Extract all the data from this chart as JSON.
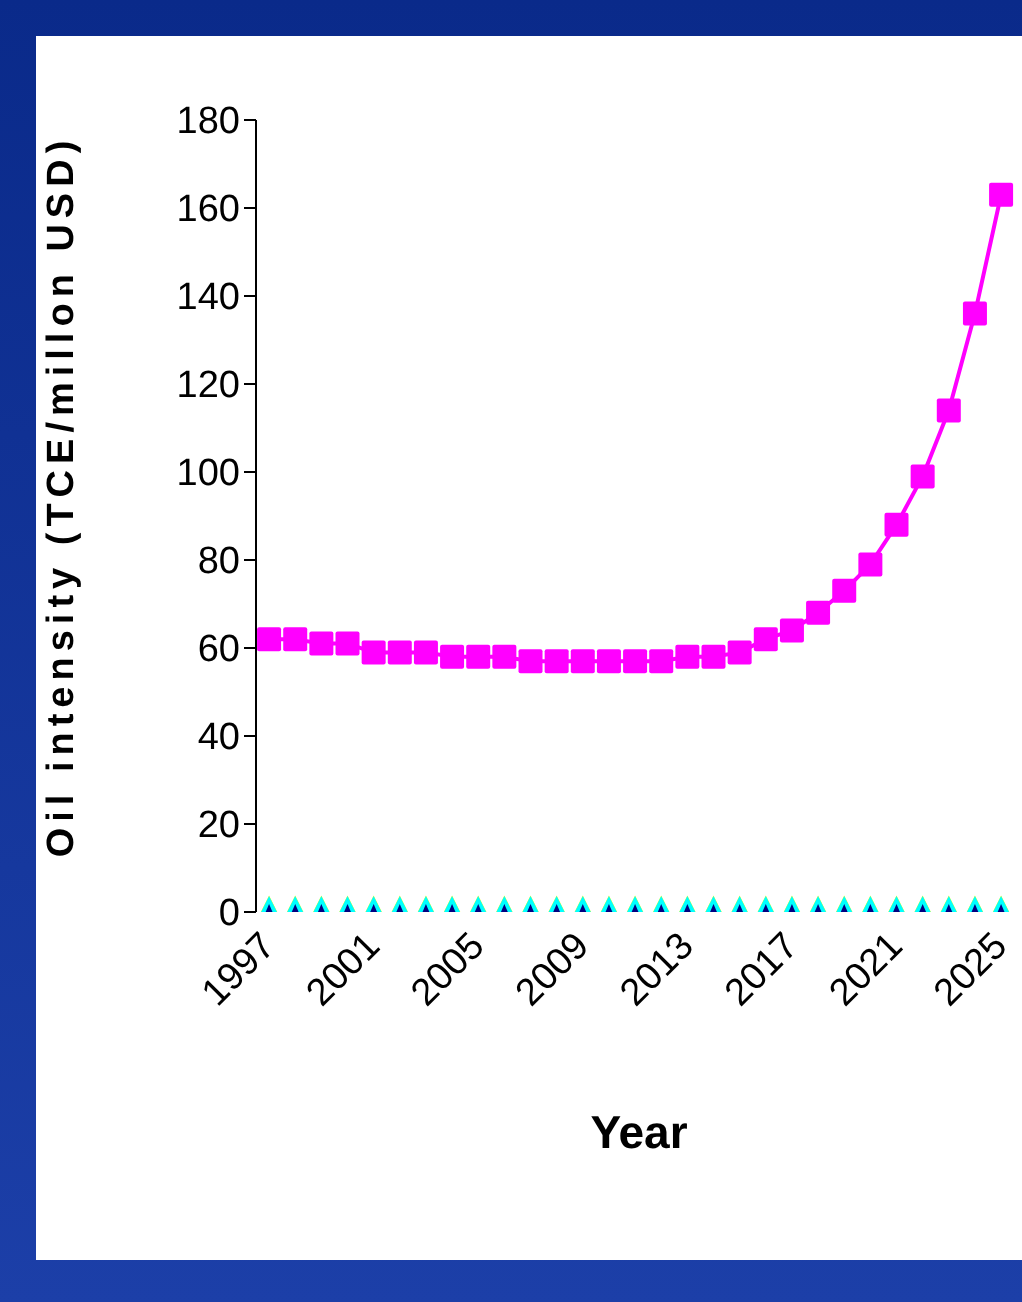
{
  "chart_data": {
    "type": "line",
    "xlabel": "Year",
    "ylabel": "Oil intensity (TCE/millon USD)",
    "categories": [
      "1997",
      null,
      null,
      null,
      "2001",
      null,
      null,
      null,
      "2005",
      null,
      null,
      null,
      "2009",
      null,
      null,
      null,
      "2013",
      null,
      null,
      null,
      "2017",
      null,
      null,
      null,
      "2021",
      null,
      null,
      null,
      "2025"
    ],
    "series": [
      {
        "color": "#ff00ff",
        "marker": "square",
        "values": [
          62,
          62,
          61,
          61,
          59,
          59,
          59,
          58,
          58,
          58,
          57,
          57,
          57,
          57,
          57,
          57,
          58,
          58,
          59,
          62,
          64,
          68,
          73,
          79,
          88,
          99,
          114,
          136,
          163
        ]
      },
      {
        "type": "scatter",
        "color": "#ffff00",
        "marker": "triangle",
        "values": [
          0,
          0,
          0,
          0,
          0,
          0,
          0,
          0,
          0,
          0,
          0,
          0,
          0,
          0,
          0,
          0,
          0,
          0,
          0,
          0,
          0,
          0,
          0,
          0,
          0,
          0,
          0,
          0,
          0
        ]
      },
      {
        "type": "scatter",
        "color": "#00ffff",
        "marker": "triangle",
        "values": [
          0,
          0,
          0,
          0,
          0,
          0,
          0,
          0,
          0,
          0,
          0,
          0,
          0,
          0,
          0,
          0,
          0,
          0,
          0,
          0,
          0,
          0,
          0,
          0,
          0,
          0,
          0,
          0,
          0
        ]
      },
      {
        "type": "scatter",
        "color": "#000080",
        "marker": "diamond",
        "values": [
          0,
          0,
          0,
          0,
          0,
          0,
          0,
          0,
          0,
          0,
          0,
          0,
          0,
          0,
          0,
          0,
          0,
          0,
          0,
          0,
          0,
          0,
          0,
          0,
          0,
          0,
          0,
          0,
          0
        ]
      }
    ],
    "ylim": [
      0,
      180
    ],
    "yticks": [
      0,
      20,
      40,
      60,
      80,
      100,
      120,
      140,
      160,
      180
    ],
    "grid": false,
    "legend": false
  }
}
